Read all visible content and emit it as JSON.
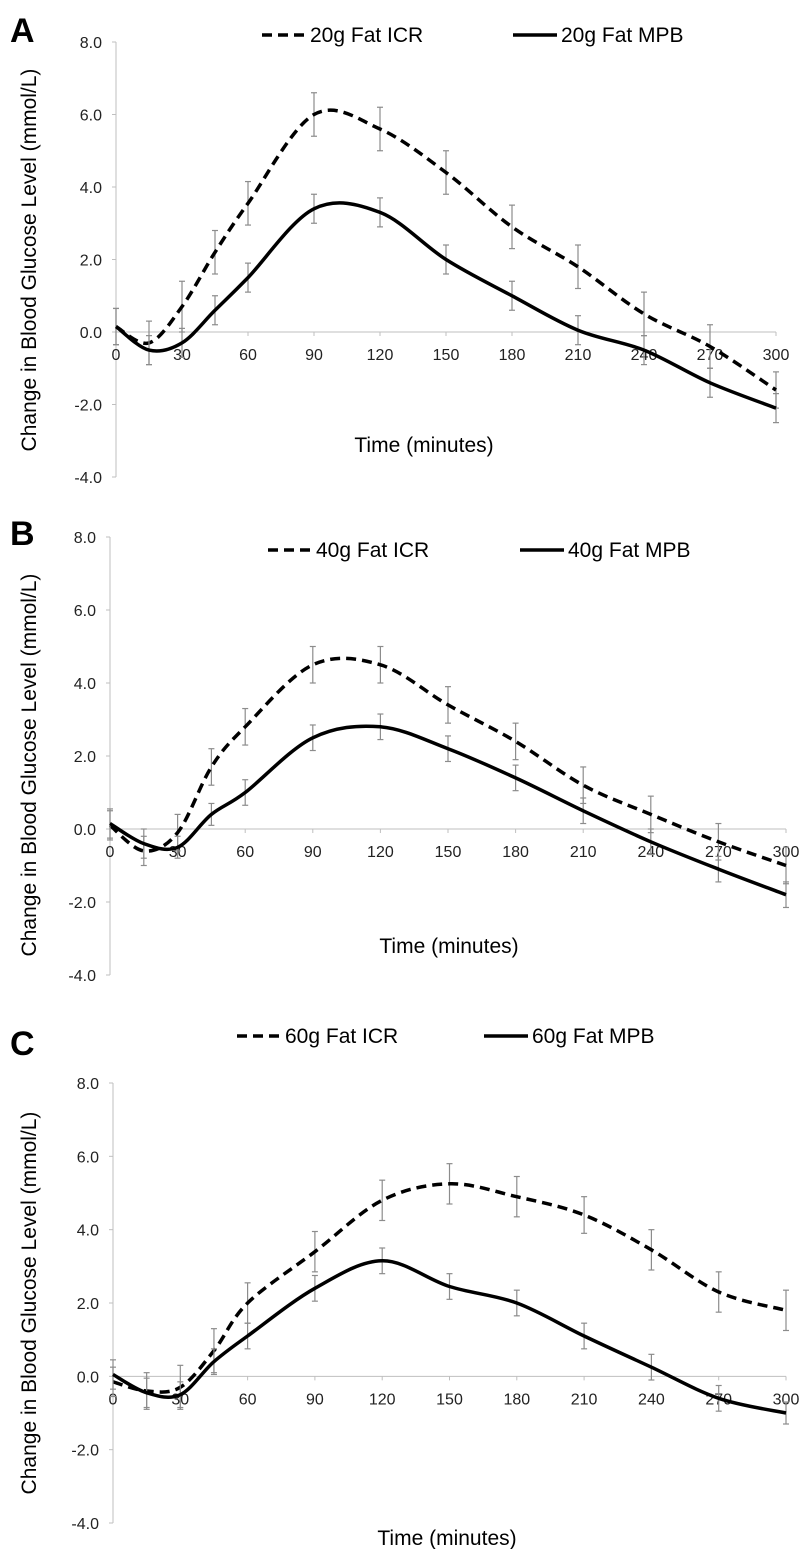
{
  "chart_data": [
    {
      "panel_label": "A",
      "type": "line",
      "xlabel": "Time (minutes)",
      "ylabel": "Change in Blood Glucose Level (mmol/L)",
      "xlim": [
        0,
        300
      ],
      "ylim": [
        -4,
        8
      ],
      "xticks": [
        "0",
        "30",
        "60",
        "90",
        "120",
        "150",
        "180",
        "210",
        "240",
        "270",
        "300"
      ],
      "yticks": [
        "8.0",
        "6.0",
        "4.0",
        "2.0",
        "0.0",
        "-2.0",
        "-4.0"
      ],
      "legend_position": "top",
      "series": [
        {
          "name": "20g Fat ICR",
          "style": "dashed",
          "x": [
            0,
            15,
            30,
            45,
            60,
            90,
            120,
            150,
            180,
            210,
            240,
            270,
            300
          ],
          "y": [
            0.15,
            -0.3,
            0.7,
            2.2,
            3.55,
            6.0,
            5.6,
            4.4,
            2.9,
            1.8,
            0.5,
            -0.4,
            -1.6
          ],
          "err": [
            0.5,
            0.6,
            0.7,
            0.6,
            0.6,
            0.6,
            0.6,
            0.6,
            0.6,
            0.6,
            0.6,
            0.6,
            0.5
          ]
        },
        {
          "name": "20g Fat MPB",
          "style": "solid",
          "x": [
            0,
            15,
            30,
            45,
            60,
            90,
            120,
            150,
            180,
            210,
            240,
            270,
            300
          ],
          "y": [
            0.15,
            -0.5,
            -0.3,
            0.6,
            1.5,
            3.4,
            3.3,
            2.0,
            1.0,
            0.05,
            -0.5,
            -1.4,
            -2.1
          ],
          "err": [
            0.5,
            0.4,
            0.4,
            0.4,
            0.4,
            0.4,
            0.4,
            0.4,
            0.4,
            0.4,
            0.4,
            0.4,
            0.4
          ]
        }
      ]
    },
    {
      "panel_label": "B",
      "type": "line",
      "xlabel": "Time (minutes)",
      "ylabel": "Change in Blood Glucose Level (mmol/L)",
      "xlim": [
        0,
        300
      ],
      "ylim": [
        -4,
        8
      ],
      "xticks": [
        "0",
        "30",
        "60",
        "90",
        "120",
        "150",
        "180",
        "210",
        "240",
        "270",
        "300"
      ],
      "yticks": [
        "8.0",
        "6.0",
        "4.0",
        "2.0",
        "0.0",
        "-2.0",
        "-4.0"
      ],
      "legend_position": "top",
      "series": [
        {
          "name": "40g Fat ICR",
          "style": "dashed",
          "x": [
            0,
            15,
            30,
            45,
            60,
            90,
            120,
            150,
            180,
            210,
            240,
            270,
            300
          ],
          "y": [
            0.1,
            -0.6,
            -0.1,
            1.7,
            2.8,
            4.5,
            4.5,
            3.4,
            2.4,
            1.2,
            0.4,
            -0.35,
            -1.0
          ],
          "err": [
            0.4,
            0.4,
            0.5,
            0.5,
            0.5,
            0.5,
            0.5,
            0.5,
            0.5,
            0.5,
            0.5,
            0.5,
            0.5
          ]
        },
        {
          "name": "40g Fat MPB",
          "style": "solid",
          "x": [
            0,
            15,
            30,
            45,
            60,
            90,
            120,
            150,
            180,
            210,
            240,
            270,
            300
          ],
          "y": [
            0.15,
            -0.4,
            -0.5,
            0.4,
            1.0,
            2.5,
            2.8,
            2.2,
            1.4,
            0.5,
            -0.35,
            -1.1,
            -1.8
          ],
          "err": [
            0.4,
            0.4,
            0.3,
            0.3,
            0.35,
            0.35,
            0.35,
            0.35,
            0.35,
            0.35,
            0.35,
            0.35,
            0.35
          ]
        }
      ]
    },
    {
      "panel_label": "C",
      "type": "line",
      "xlabel": "Time (minutes)",
      "ylabel": "Change in Blood Glucose Level (mmol/L)",
      "xlim": [
        0,
        300
      ],
      "ylim": [
        -4,
        8
      ],
      "xticks": [
        "0",
        "30",
        "60",
        "90",
        "120",
        "150",
        "180",
        "210",
        "240",
        "270",
        "300"
      ],
      "yticks": [
        "8.0",
        "6.0",
        "4.0",
        "2.0",
        "0.0",
        "-2.0",
        "-4.0"
      ],
      "legend_position": "top",
      "series": [
        {
          "name": "60g Fat ICR",
          "style": "dashed",
          "x": [
            0,
            15,
            30,
            45,
            60,
            90,
            120,
            150,
            180,
            210,
            240,
            270,
            300
          ],
          "y": [
            -0.15,
            -0.4,
            -0.3,
            0.7,
            2.0,
            3.4,
            4.8,
            5.25,
            4.9,
            4.4,
            3.45,
            2.3,
            1.8
          ],
          "err": [
            0.4,
            0.5,
            0.6,
            0.6,
            0.55,
            0.55,
            0.55,
            0.55,
            0.55,
            0.5,
            0.55,
            0.55,
            0.55
          ]
        },
        {
          "name": "60g Fat MPB",
          "style": "solid",
          "x": [
            0,
            15,
            30,
            45,
            60,
            90,
            120,
            150,
            180,
            210,
            240,
            270,
            300
          ],
          "y": [
            0.05,
            -0.45,
            -0.5,
            0.4,
            1.1,
            2.4,
            3.15,
            2.45,
            2.0,
            1.1,
            0.25,
            -0.6,
            -1.0
          ],
          "err": [
            0.4,
            0.4,
            0.35,
            0.35,
            0.35,
            0.35,
            0.35,
            0.35,
            0.35,
            0.35,
            0.35,
            0.35,
            0.3
          ]
        }
      ]
    }
  ]
}
